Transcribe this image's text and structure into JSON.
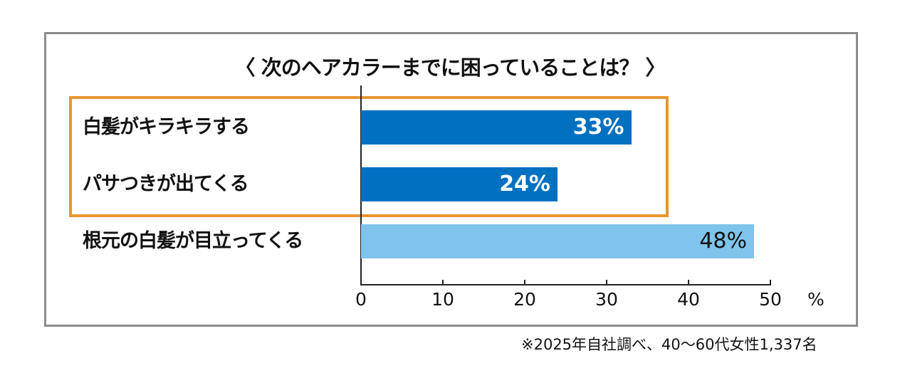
{
  "chart_data": {
    "type": "bar",
    "orientation": "horizontal",
    "title": "〈 次のヘアカラーまでに困っていることは？ 〉",
    "categories": [
      "白髪がキラキラする",
      "パサつきが出てくる",
      "根元の白髪が目立ってくる"
    ],
    "values": [
      33,
      24,
      48
    ],
    "value_labels": [
      "33%",
      "24%",
      "48%"
    ],
    "highlighted": [
      true,
      true,
      false
    ],
    "xlim": [
      0,
      50
    ],
    "xticks": [
      "0",
      "10",
      "20",
      "30",
      "40",
      "50"
    ],
    "xlabel": "%",
    "colors": {
      "highlight_bar": "#0070C0",
      "normal_bar": "#7FC4EB",
      "highlight_box": "#E8962E"
    },
    "footnote": "※2025年自社調べ、40〜60代女性1,337名"
  }
}
